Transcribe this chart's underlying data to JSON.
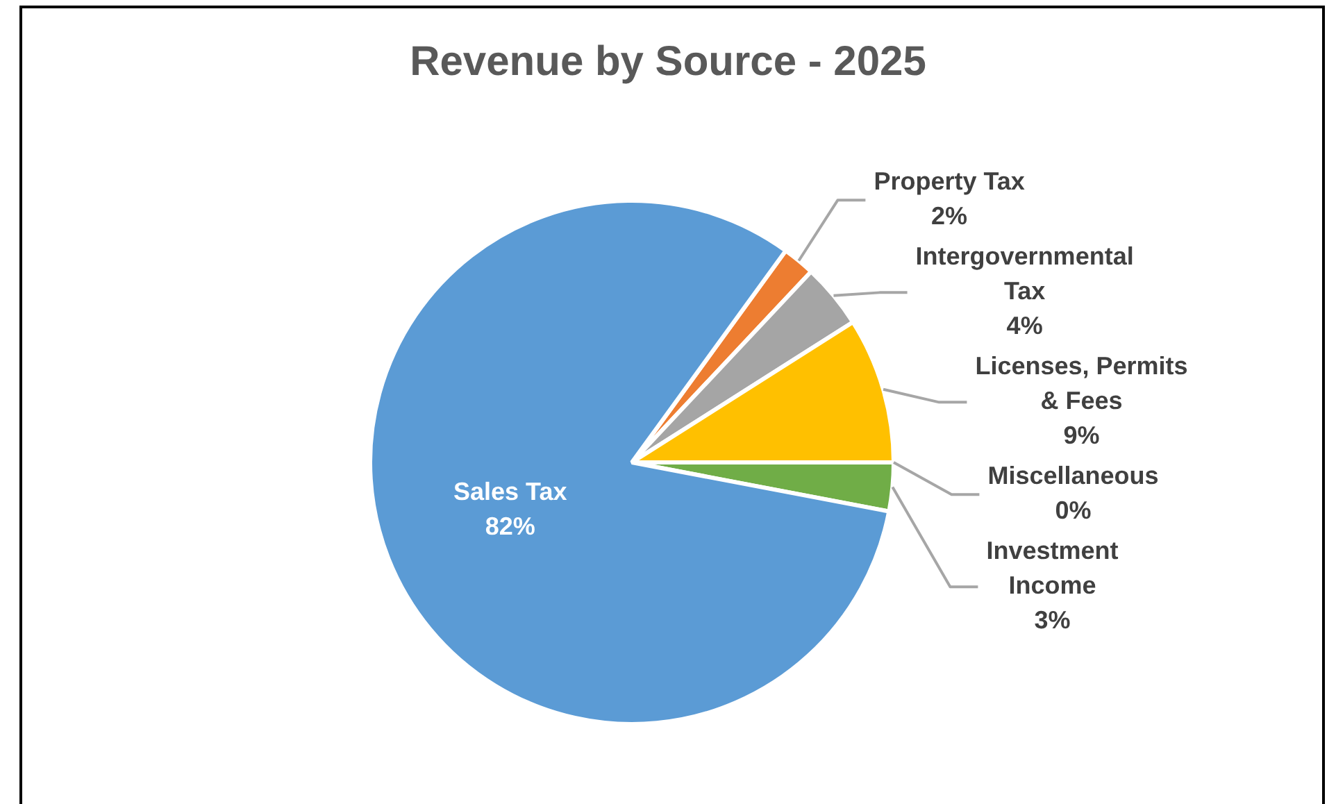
{
  "chart_data": {
    "type": "pie",
    "title": "Revenue by Source - 2025",
    "categories": [
      "Property Tax",
      "Intergovernmental Tax",
      "Licenses, Permits & Fees",
      "Miscellaneous",
      "Investment Income",
      "Sales Tax"
    ],
    "values": [
      2,
      4,
      9,
      0,
      3,
      82
    ],
    "colors": [
      "#ed7d31",
      "#a5a5a5",
      "#ffc000",
      "#4472c4",
      "#70ad47",
      "#5b9bd5"
    ],
    "value_labels": [
      "2%",
      "4%",
      "9%",
      "0%",
      "3%",
      "82%"
    ]
  }
}
